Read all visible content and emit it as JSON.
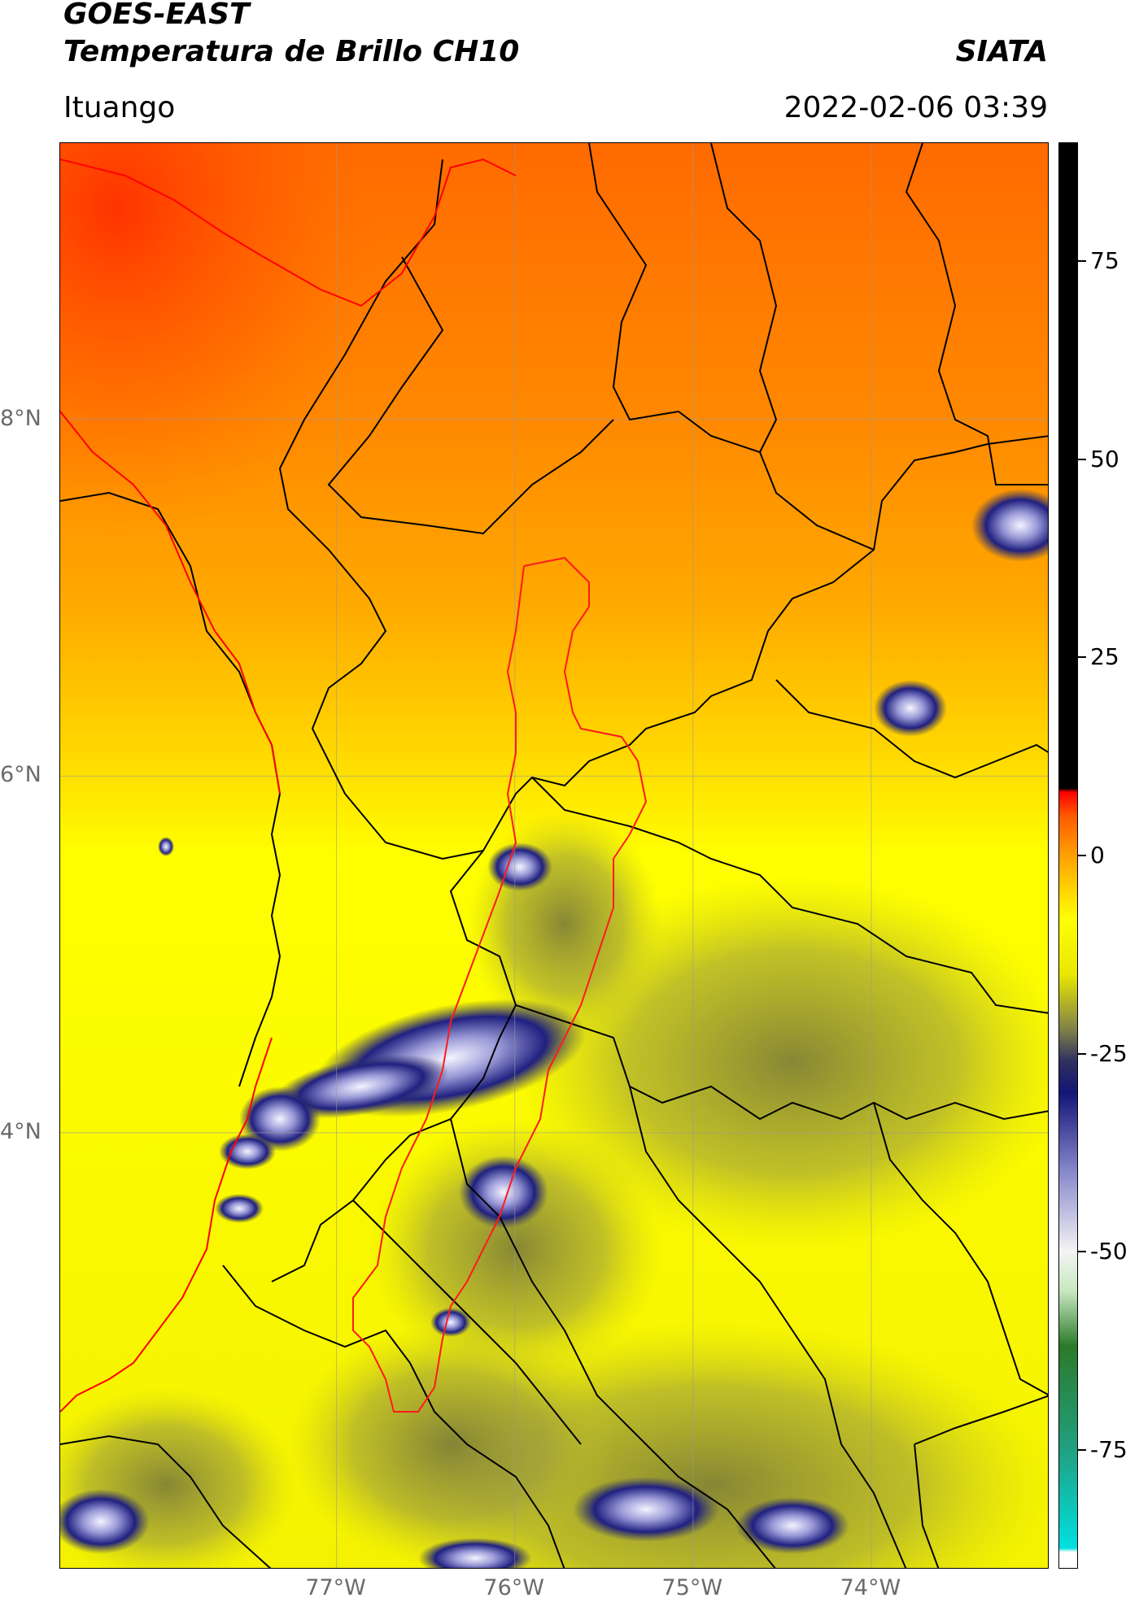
{
  "header": {
    "satellite": "GOES-EAST",
    "product": "Temperatura de Brillo CH10",
    "org": "SIATA",
    "region": "Ituango",
    "timestamp": "2022-02-06 03:39"
  },
  "map": {
    "lat_labels": [
      "8°N",
      "6°N",
      "4°N"
    ],
    "lon_labels": [
      "77°W",
      "76°W",
      "75°W",
      "74°W"
    ],
    "lat_ticks": [
      8,
      6,
      4
    ],
    "lon_ticks": [
      -77,
      -76,
      -75,
      -74
    ],
    "extent": {
      "lon_min": -78.55,
      "lon_max": -73.0,
      "lat_min": 1.55,
      "lat_max": 9.55
    },
    "colors": {
      "warm_red": "#ff3c00",
      "orange": "#ff8c00",
      "yellow": "#ffff00",
      "olive": "#8c8c3c",
      "cold_blue": "#1e1e80",
      "coldest_white": "#f0f0ff",
      "borders": "#000000",
      "basin_outline": "#ff0000"
    }
  },
  "colorbar": {
    "labels": [
      "75",
      "50",
      "25",
      "0",
      "-25",
      "-50",
      "-75"
    ],
    "values": [
      75,
      50,
      25,
      0,
      -25,
      -50,
      -75
    ],
    "min": -90,
    "max": 90,
    "stops": [
      {
        "v": -90,
        "c": "#ffffff"
      },
      {
        "v": -88,
        "c": "#ffffff"
      },
      {
        "v": -87.5,
        "c": "#00e0e0"
      },
      {
        "v": -75,
        "c": "#20a080"
      },
      {
        "v": -62,
        "c": "#2a7a2a"
      },
      {
        "v": -55,
        "c": "#c8e8c0"
      },
      {
        "v": -50,
        "c": "#f4f4f4"
      },
      {
        "v": -40,
        "c": "#8888cc"
      },
      {
        "v": -30,
        "c": "#141478"
      },
      {
        "v": -26,
        "c": "#303060"
      },
      {
        "v": -22,
        "c": "#80804a"
      },
      {
        "v": -15,
        "c": "#e8e800"
      },
      {
        "v": -8,
        "c": "#ffff00"
      },
      {
        "v": 0,
        "c": "#ffa000"
      },
      {
        "v": 5,
        "c": "#ff5a00"
      },
      {
        "v": 8,
        "c": "#ff0000"
      },
      {
        "v": 8.5,
        "c": "#000000"
      },
      {
        "v": 90,
        "c": "#000000"
      }
    ]
  }
}
